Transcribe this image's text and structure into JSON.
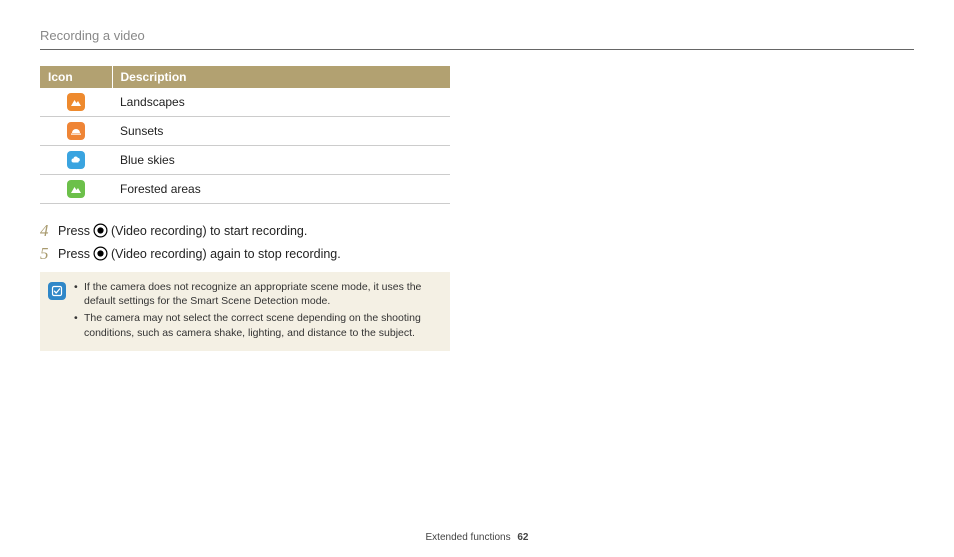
{
  "heading": "Recording a video",
  "table": {
    "headers": {
      "icon": "Icon",
      "description": "Description"
    },
    "rows": [
      {
        "icon_name": "landscapes-icon",
        "bg": "#ee8a2e",
        "shape": "mountain",
        "shape_color": "#ffffff",
        "label": "Landscapes"
      },
      {
        "icon_name": "sunsets-icon",
        "bg": "#ef8536",
        "shape": "sunset",
        "shape_color": "#ffffff",
        "label": "Sunsets"
      },
      {
        "icon_name": "blue-skies-icon",
        "bg": "#3aa4e0",
        "shape": "cloud",
        "shape_color": "#ffffff",
        "label": "Blue skies"
      },
      {
        "icon_name": "forested-icon",
        "bg": "#6cc04a",
        "shape": "mountain",
        "shape_color": "#ffffff",
        "label": "Forested areas"
      }
    ]
  },
  "steps": [
    {
      "num": "4",
      "before": "Press ",
      "after": " (Video recording) to start recording."
    },
    {
      "num": "5",
      "before": "Press ",
      "after": " (Video recording) again to stop recording."
    }
  ],
  "notes": [
    "If the camera does not recognize an appropriate scene mode, it uses the default settings for the Smart Scene Detection mode.",
    "The camera may not select the correct scene depending on the shooting conditions, such as camera shake, lighting, and distance to the subject."
  ],
  "footer": {
    "section": "Extended functions",
    "page": "62"
  },
  "colors": {
    "header_bg": "#b2a171",
    "note_bg": "#f4f0e4",
    "note_icon_bg": "#2f87c8",
    "step_num": "#a89a6e",
    "heading_text": "#888888",
    "rule": "#666666",
    "row_border": "#cccccc"
  }
}
